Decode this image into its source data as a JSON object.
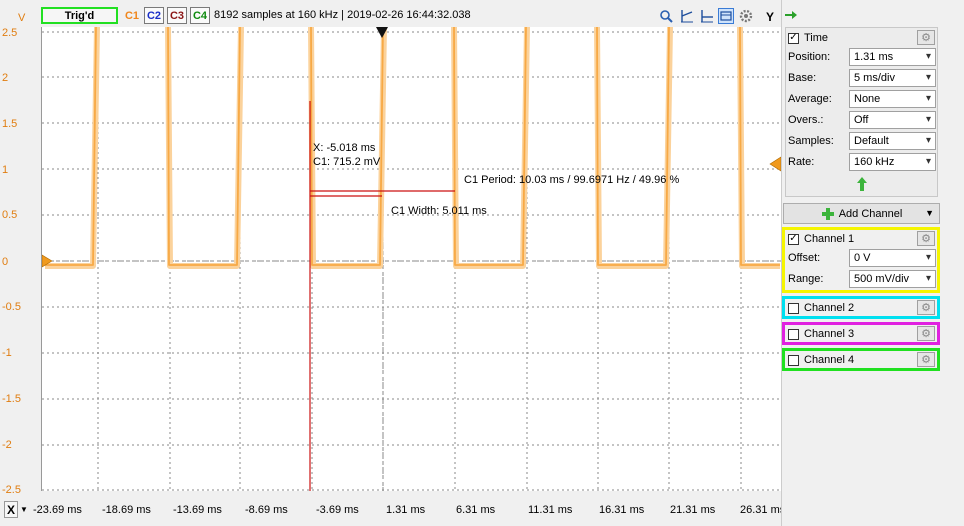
{
  "topbar": {
    "trig_label": "Trig'd",
    "channels": [
      "C1",
      "C2",
      "C3",
      "C4"
    ],
    "status": "8192 samples at 160 kHz | 2019-02-26 16:44:32.038",
    "y_button": "Y",
    "icons": [
      "zoom-icon",
      "cursor-x-icon",
      "cursor-y-icon",
      "screen-icon",
      "settings-icon"
    ]
  },
  "plot": {
    "y_unit": "V",
    "y_ticks": [
      "2.5",
      "2",
      "1.5",
      "1",
      "0.5",
      "0",
      "-0.5",
      "-1",
      "-1.5",
      "-2",
      "-2.5"
    ],
    "x_button": "X",
    "x_ticks": [
      "-23.69 ms",
      "-18.69 ms",
      "-13.69 ms",
      "-8.69 ms",
      "-3.69 ms",
      "1.31 ms",
      "6.31 ms",
      "11.31 ms",
      "16.31 ms",
      "21.31 ms",
      "26.31 ms"
    ],
    "cursor_x": "X: -5.018 ms",
    "cursor_c1": "C1: 715.2 mV",
    "period_label": "C1 Period: 10.03 ms / 99.6971 Hz / 49.96 %",
    "width_label": "C1 Width: 5.011 ms",
    "colors": {
      "trace": "#f7a945",
      "trace_soft": "#fbd29b",
      "grid": "#8a8a8a",
      "cursor": "#cc1111"
    }
  },
  "panel": {
    "time_label": "Time",
    "time_checked": true,
    "fields": [
      {
        "label": "Position:",
        "value": "1.31 ms"
      },
      {
        "label": "Base:",
        "value": "5 ms/div"
      },
      {
        "label": "Average:",
        "value": "None"
      },
      {
        "label": "Overs.:",
        "value": "Off"
      },
      {
        "label": "Samples:",
        "value": "Default"
      },
      {
        "label": "Rate:",
        "value": "160 kHz"
      }
    ],
    "add_channel": "Add Channel",
    "channel1": {
      "label": "Channel 1",
      "checked": true,
      "offset_label": "Offset:",
      "offset": "0 V",
      "range_label": "Range:",
      "range": "500 mV/div",
      "color": "#f5f500"
    },
    "channel2": {
      "label": "Channel 2",
      "checked": false,
      "color": "#00e0f0"
    },
    "channel3": {
      "label": "Channel 3",
      "checked": false,
      "color": "#e020e0"
    },
    "channel4": {
      "label": "Channel 4",
      "checked": false,
      "color": "#20e020"
    }
  }
}
